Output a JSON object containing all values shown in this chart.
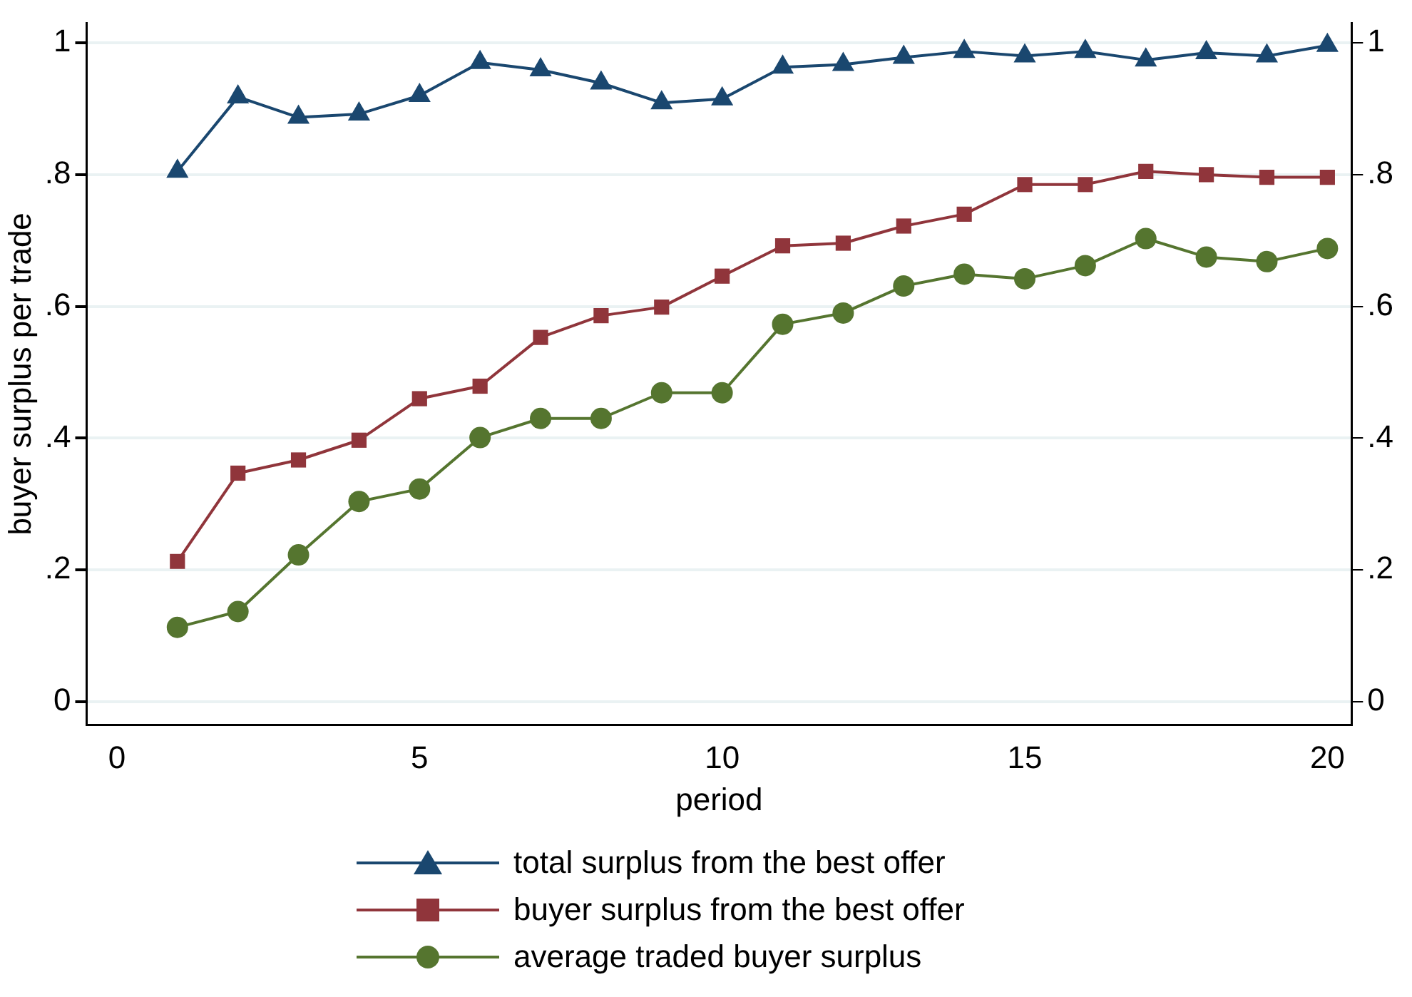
{
  "chart_data": {
    "type": "line",
    "xlabel": "period",
    "ylabel": "buyer surplus per trade",
    "x": [
      1,
      2,
      3,
      4,
      5,
      6,
      7,
      8,
      9,
      10,
      11,
      12,
      13,
      14,
      15,
      16,
      17,
      18,
      19,
      20
    ],
    "series": [
      {
        "name": "total surplus from the best offer",
        "color": "#1a476f",
        "marker": "triangle",
        "values": [
          0.805,
          0.918,
          0.887,
          0.892,
          0.92,
          0.97,
          0.959,
          0.939,
          0.909,
          0.915,
          0.963,
          0.967,
          0.978,
          0.987,
          0.98,
          0.987,
          0.974,
          0.985,
          0.98,
          0.996
        ]
      },
      {
        "name": "buyer surplus from the best offer",
        "color": "#90353b",
        "marker": "square",
        "values": [
          0.213,
          0.347,
          0.367,
          0.397,
          0.46,
          0.479,
          0.553,
          0.586,
          0.599,
          0.646,
          0.692,
          0.696,
          0.722,
          0.74,
          0.785,
          0.785,
          0.805,
          0.8,
          0.796,
          0.796
        ]
      },
      {
        "name": "average traded buyer surplus",
        "color": "#55752f",
        "marker": "circle",
        "values": [
          0.113,
          0.137,
          0.223,
          0.304,
          0.323,
          0.401,
          0.43,
          0.43,
          0.469,
          0.469,
          0.573,
          0.59,
          0.631,
          0.649,
          0.642,
          0.662,
          0.703,
          0.675,
          0.668,
          0.688
        ]
      }
    ],
    "xlim": [
      -0.5,
      20.4
    ],
    "xticks": [
      0,
      5,
      10,
      15,
      20
    ],
    "ylim": [
      -0.035,
      1.03
    ],
    "yticks": [
      0,
      {
        "value": 0.2,
        "label": ".2"
      },
      {
        "value": 0.4,
        "label": ".4"
      },
      {
        "value": 0.6,
        "label": ".6"
      },
      {
        "value": 0.8,
        "label": ".8"
      },
      1
    ],
    "y2lim": [
      -0.035,
      1.03
    ],
    "y2ticks": [
      0,
      {
        "value": 0.2,
        "label": ".2"
      },
      {
        "value": 0.4,
        "label": ".4"
      },
      {
        "value": 0.6,
        "label": ".6"
      },
      {
        "value": 0.8,
        "label": ".8"
      },
      1
    ],
    "grid": "y",
    "legend": "bottom",
    "line_style": "solid"
  }
}
